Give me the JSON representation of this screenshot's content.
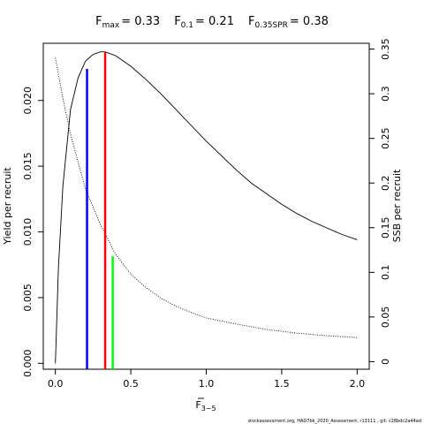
{
  "chart_data": {
    "type": "line",
    "title_parts": [
      {
        "main": "F",
        "sub": "max",
        "value": "= 0.33"
      },
      {
        "main": "F",
        "sub": "0.1",
        "value": "= 0.21"
      },
      {
        "main": "F",
        "sub": "0.35SPR",
        "value": "= 0.38"
      }
    ],
    "xlabel": {
      "main": "F",
      "sub": "3−5"
    },
    "ylabel_left": "Yield per recruit",
    "ylabel_right": "SSB per recruit",
    "xlim": [
      -0.08,
      2.08
    ],
    "ylim_left": [
      -0.00045,
      0.02435
    ],
    "ylim_right": [
      -0.0085,
      0.3565
    ],
    "x_ticks": [
      {
        "v": 0,
        "label": "0.0"
      },
      {
        "v": 0.5,
        "label": "0.5"
      },
      {
        "v": 1.0,
        "label": "1.0"
      },
      {
        "v": 1.5,
        "label": "1.5"
      },
      {
        "v": 2.0,
        "label": "2.0"
      }
    ],
    "y_left_ticks": [
      {
        "v": 0,
        "label": "0.000"
      },
      {
        "v": 0.005,
        "label": "0.005"
      },
      {
        "v": 0.01,
        "label": "0.010"
      },
      {
        "v": 0.015,
        "label": "0.015"
      },
      {
        "v": 0.02,
        "label": "0.020"
      }
    ],
    "y_right_ticks": [
      {
        "v": 0,
        "label": "0"
      },
      {
        "v": 0.05,
        "label": "0.05"
      },
      {
        "v": 0.1,
        "label": "0.1"
      },
      {
        "v": 0.15,
        "label": "0.15"
      },
      {
        "v": 0.2,
        "label": "0.2"
      },
      {
        "v": 0.25,
        "label": "0.25"
      },
      {
        "v": 0.3,
        "label": "0.3"
      },
      {
        "v": 0.35,
        "label": "0.35"
      }
    ],
    "series": [
      {
        "axis": "left",
        "style": "solid",
        "color": "#000000",
        "x": [
          0,
          0.02,
          0.05,
          0.1,
          0.15,
          0.2,
          0.25,
          0.3,
          0.33,
          0.4,
          0.5,
          0.6,
          0.7,
          0.8,
          0.9,
          1.0,
          1.1,
          1.2,
          1.3,
          1.4,
          1.5,
          1.6,
          1.7,
          1.8,
          1.9,
          2.0
        ],
        "y": [
          0,
          0.0072,
          0.0135,
          0.0193,
          0.0217,
          0.023,
          0.0235,
          0.0237,
          0.0237,
          0.0234,
          0.0226,
          0.0216,
          0.0205,
          0.0193,
          0.0181,
          0.0169,
          0.0158,
          0.0147,
          0.0137,
          0.0129,
          0.0121,
          0.0114,
          0.0108,
          0.0103,
          0.0098,
          0.0094
        ]
      },
      {
        "axis": "right",
        "style": "dotted",
        "color": "#000000",
        "x": [
          0,
          0.05,
          0.1,
          0.2,
          0.3,
          0.4,
          0.5,
          0.6,
          0.7,
          0.8,
          0.9,
          1.0,
          1.2,
          1.4,
          1.6,
          1.8,
          2.0
        ],
        "y": [
          0.34,
          0.295,
          0.255,
          0.193,
          0.153,
          0.12,
          0.098,
          0.083,
          0.071,
          0.062,
          0.055,
          0.049,
          0.042,
          0.036,
          0.032,
          0.029,
          0.027
        ]
      }
    ],
    "reference_lines": [
      {
        "x": 0.21,
        "axis": "left",
        "y_top": 0.0224,
        "color": "#0000ff"
      },
      {
        "x": 0.33,
        "axis": "left",
        "y_top": 0.0237,
        "color": "#ff0000"
      },
      {
        "x": 0.38,
        "axis": "right",
        "y_top": 0.118,
        "color": "#00ff00"
      }
    ],
    "grid": false,
    "legend": "none"
  },
  "footer": "stockassessment.org, HAD7bk_2020_Assessment, r13111 , git: c28bdc2a44ad"
}
